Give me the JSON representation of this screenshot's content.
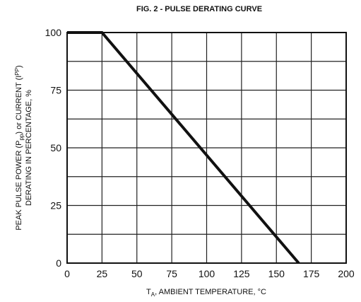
{
  "chart_data": {
    "type": "line",
    "title": "FIG. 2 - PULSE DERATING CURVE",
    "xlabel_main": "T",
    "xlabel_sub": "A",
    "xlabel_rest": ", AMBIENT TEMPERATURE, °C",
    "ylabel_line1_a": "PEAK PULSE POWER (P",
    "ylabel_line1_sub1": "pp",
    "ylabel_line1_b": ") or CURRENT (I",
    "ylabel_line1_sub2": "PP",
    "ylabel_line1_c": ")",
    "ylabel_line2": "DERATING IN PERCENTAGE, %",
    "xlim": [
      0,
      200
    ],
    "ylim": [
      0,
      100
    ],
    "x_ticks": [
      0,
      25,
      50,
      75,
      100,
      125,
      150,
      175,
      200
    ],
    "x_tick_labels": [
      "0",
      "25",
      "50",
      "75",
      "100",
      "125",
      "150",
      "175",
      "200"
    ],
    "y_ticks": [
      0,
      25,
      50,
      75,
      100
    ],
    "y_tick_labels": [
      "0",
      "25",
      "50",
      "75",
      "100"
    ],
    "grid": true,
    "series": [
      {
        "x": [
          0,
          25,
          166
        ],
        "y": [
          100,
          100,
          0
        ]
      }
    ]
  }
}
